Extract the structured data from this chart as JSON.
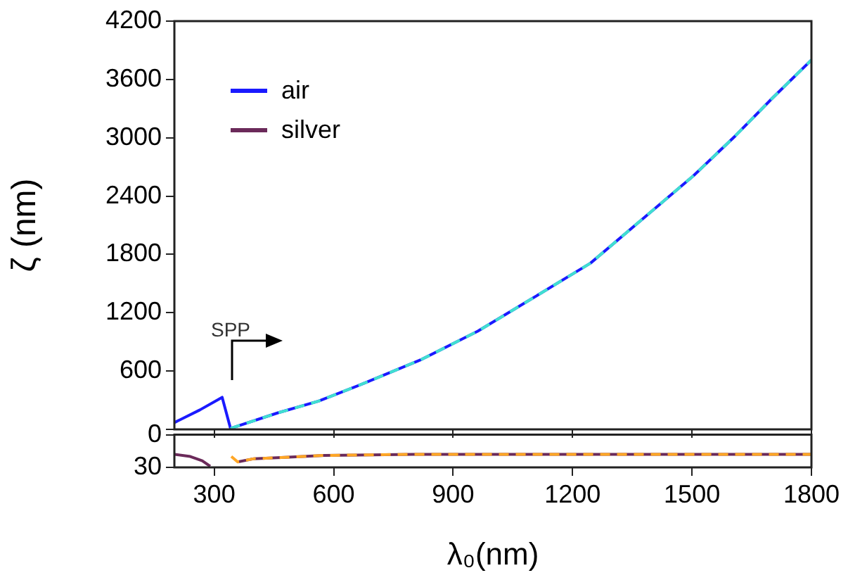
{
  "chart_data": [
    {
      "type": "line",
      "ylabel": "ζ (nm)",
      "xlim": [
        200,
        1800
      ],
      "xticks": [
        300,
        600,
        900,
        1200,
        1500,
        1800
      ],
      "ylim": [
        0,
        4200
      ],
      "yticks": [
        {
          "value": 0,
          "label": null
        },
        600,
        1200,
        1800,
        2400,
        3000,
        3600,
        4200
      ],
      "tick_labels": "y",
      "legend": "top left",
      "grid": false,
      "marker": "none",
      "annotations": [
        "SPP"
      ],
      "series": [
        {
          "name": "air",
          "color": "#1a1aff",
          "line_style": "solid",
          "x": [
            200,
            264,
            320,
            341,
            460,
            562,
            680,
            821,
            962,
            1092,
            1245,
            1386,
            1504,
            1609,
            1700,
            1800
          ],
          "values": [
            70,
            200,
            330,
            10,
            170,
            290,
            480,
            720,
            1010,
            1330,
            1710,
            2200,
            2610,
            3020,
            3400,
            3800
          ]
        },
        {
          "color": "#40e0d0",
          "line_style": "dashed",
          "x": [
            341,
            460,
            562,
            680,
            821,
            962,
            1092,
            1245,
            1386,
            1504,
            1609,
            1700,
            1800
          ],
          "values": [
            10,
            170,
            290,
            480,
            720,
            1010,
            1330,
            1710,
            2200,
            2610,
            3020,
            3400,
            3800
          ]
        }
      ]
    },
    {
      "type": "line",
      "xlabel": "λ₀(nm)",
      "xlim": [
        200,
        1800
      ],
      "xticks": [
        300,
        600,
        900,
        1200,
        1500,
        1800
      ],
      "ylim": [
        30,
        0
      ],
      "yticks": [
        30,
        0
      ],
      "grid": false,
      "marker": "none",
      "series": [
        {
          "name": "silver",
          "color": "#6b2a5a",
          "line_style": "solid",
          "x": [
            200,
            240,
            270,
            290,
            320,
            343,
            359,
            400,
            468,
            577,
            800,
            1200,
            1800
          ],
          "values": [
            18,
            20,
            24,
            29,
            null,
            null,
            25,
            22,
            21,
            19,
            18,
            18,
            18
          ]
        },
        {
          "color": "#ffa726",
          "line_style": "dashed",
          "x": [
            343,
            359,
            400,
            468,
            577,
            800,
            1200,
            1800
          ],
          "values": [
            20,
            25,
            22,
            21,
            19,
            18,
            18,
            18
          ]
        }
      ]
    }
  ]
}
